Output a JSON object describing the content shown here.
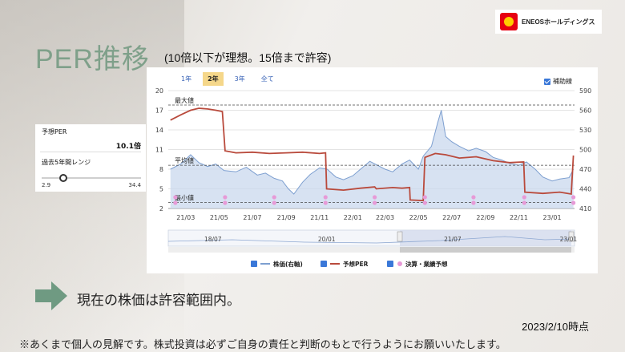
{
  "header": {
    "logo_text": "ENEOSホールディングス",
    "title": "PER推移",
    "subtitle": "(10倍以下が理想。15倍まで許容)"
  },
  "sidepanel": {
    "forecast_per_label": "予想PER",
    "forecast_per_value": "10.1倍",
    "range_label": "過去5年間レンジ",
    "range_min": "2.9",
    "range_max": "34.4",
    "range_position": 0.22
  },
  "chart_controls": {
    "tabs": [
      {
        "label": "1年",
        "active": false
      },
      {
        "label": "2年",
        "active": true
      },
      {
        "label": "3年",
        "active": false
      },
      {
        "label": "全て",
        "active": false
      }
    ],
    "aux_line_label": "補助線"
  },
  "legend": {
    "price": "株価(右軸)",
    "per": "予想PER",
    "earnings": "決算・業績予想"
  },
  "footer": {
    "message": "現在の株価は許容範囲内。",
    "date": "2023/2/10時点",
    "disclaimer": "※あくまで個人の見解です。株式投資は必ずご自身の責任と判断のもとで行うようにお願いいたします。"
  },
  "chart_data": {
    "type": "line",
    "x_ticks": [
      "21/03",
      "21/05",
      "21/07",
      "21/09",
      "21/11",
      "22/01",
      "22/03",
      "22/05",
      "22/07",
      "22/09",
      "22/11",
      "23/01"
    ],
    "y_left_ticks": [
      2,
      5,
      8,
      11,
      14,
      17,
      20
    ],
    "y_left_range": [
      2,
      20
    ],
    "y_right_ticks": [
      410,
      440,
      470,
      500,
      530,
      560,
      590
    ],
    "y_right_range": [
      410,
      590
    ],
    "reference_lines": [
      {
        "label": "最大値",
        "value": 17.8
      },
      {
        "label": "平均値",
        "value": 8.6
      },
      {
        "label": "最小値",
        "value": 2.9
      }
    ],
    "series": [
      {
        "name": "予想PER",
        "axis": "left",
        "color": "#b94a3c",
        "points": [
          [
            "21/02/01",
            15.5
          ],
          [
            "21/02/20",
            16.3
          ],
          [
            "21/03/10",
            17.0
          ],
          [
            "21/03/25",
            17.3
          ],
          [
            "21/04/10",
            17.2
          ],
          [
            "21/04/25",
            17.0
          ],
          [
            "21/05/07",
            16.8
          ],
          [
            "21/05/12",
            10.8
          ],
          [
            "21/06/01",
            10.5
          ],
          [
            "21/07/01",
            10.6
          ],
          [
            "21/08/01",
            10.4
          ],
          [
            "21/09/01",
            10.5
          ],
          [
            "21/10/01",
            10.6
          ],
          [
            "21/11/01",
            10.4
          ],
          [
            "21/11/12",
            10.5
          ],
          [
            "21/11/14",
            5.0
          ],
          [
            "21/12/15",
            4.8
          ],
          [
            "22/01/15",
            5.1
          ],
          [
            "22/02/10",
            5.3
          ],
          [
            "22/02/13",
            5.0
          ],
          [
            "22/03/15",
            5.2
          ],
          [
            "22/04/01",
            5.1
          ],
          [
            "22/04/15",
            5.2
          ],
          [
            "22/04/16",
            3.3
          ],
          [
            "22/05/10",
            3.2
          ],
          [
            "22/05/13",
            9.8
          ],
          [
            "22/06/01",
            10.4
          ],
          [
            "22/06/20",
            10.2
          ],
          [
            "22/07/15",
            9.7
          ],
          [
            "22/08/15",
            9.9
          ],
          [
            "22/09/15",
            9.3
          ],
          [
            "22/10/15",
            9.0
          ],
          [
            "22/11/10",
            9.1
          ],
          [
            "22/11/12",
            4.5
          ],
          [
            "22/12/15",
            4.3
          ],
          [
            "23/01/15",
            4.5
          ],
          [
            "23/02/05",
            4.2
          ],
          [
            "23/02/09",
            10.1
          ]
        ]
      },
      {
        "name": "株価(右軸)",
        "axis": "right",
        "color": "#7d9fd0",
        "points": [
          [
            "21/02/01",
            470
          ],
          [
            "21/02/20",
            478
          ],
          [
            "21/03/10",
            492
          ],
          [
            "21/03/25",
            480
          ],
          [
            "21/04/10",
            474
          ],
          [
            "21/04/25",
            478
          ],
          [
            "21/05/10",
            468
          ],
          [
            "21/06/01",
            466
          ],
          [
            "21/06/20",
            473
          ],
          [
            "21/07/10",
            461
          ],
          [
            "21/07/25",
            464
          ],
          [
            "21/08/10",
            456
          ],
          [
            "21/08/25",
            452
          ],
          [
            "21/09/05",
            440
          ],
          [
            "21/09/15",
            432
          ],
          [
            "21/10/01",
            450
          ],
          [
            "21/10/15",
            462
          ],
          [
            "21/11/01",
            472
          ],
          [
            "21/11/15",
            470
          ],
          [
            "21/12/01",
            458
          ],
          [
            "21/12/15",
            454
          ],
          [
            "22/01/01",
            460
          ],
          [
            "22/01/15",
            470
          ],
          [
            "22/02/01",
            482
          ],
          [
            "22/02/15",
            476
          ],
          [
            "22/03/01",
            470
          ],
          [
            "22/03/15",
            466
          ],
          [
            "22/04/01",
            478
          ],
          [
            "22/04/15",
            484
          ],
          [
            "22/05/01",
            470
          ],
          [
            "22/05/10",
            490
          ],
          [
            "22/05/25",
            505
          ],
          [
            "22/06/05",
            540
          ],
          [
            "22/06/12",
            560
          ],
          [
            "22/06/20",
            520
          ],
          [
            "22/07/01",
            512
          ],
          [
            "22/07/15",
            505
          ],
          [
            "22/08/01",
            498
          ],
          [
            "22/08/15",
            502
          ],
          [
            "22/09/01",
            497
          ],
          [
            "22/09/15",
            488
          ],
          [
            "22/10/01",
            484
          ],
          [
            "22/10/15",
            479
          ],
          [
            "22/11/01",
            476
          ],
          [
            "22/11/15",
            481
          ],
          [
            "22/12/01",
            470
          ],
          [
            "22/12/15",
            458
          ],
          [
            "23/01/01",
            452
          ],
          [
            "23/01/15",
            455
          ],
          [
            "23/02/01",
            457
          ],
          [
            "23/02/09",
            470
          ]
        ]
      }
    ],
    "earnings_markers": [
      "21/02/10",
      "21/05/12",
      "21/08/10",
      "21/11/12",
      "22/02/10",
      "22/05/13",
      "22/08/10",
      "22/11/11",
      "23/02/09"
    ],
    "navigator": {
      "labels": [
        "18/07",
        "20/01",
        "21/07",
        "23/01"
      ],
      "selection": [
        "21/02/01",
        "23/02/09"
      ]
    }
  }
}
